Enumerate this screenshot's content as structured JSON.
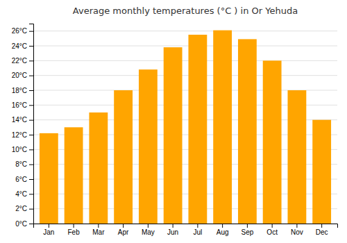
{
  "chart_data": {
    "type": "bar",
    "title": "Average monthly temperatures (°C ) in Or Yehuda",
    "categories": [
      "Jan",
      "Feb",
      "Mar",
      "Apr",
      "May",
      "Jun",
      "Jul",
      "Aug",
      "Sep",
      "Oct",
      "Nov",
      "Dec"
    ],
    "values": [
      12.2,
      13.0,
      15.0,
      18.0,
      20.8,
      23.8,
      25.5,
      26.1,
      24.9,
      22.0,
      18.0,
      14.0
    ],
    "color": "#FFA500",
    "ylim": [
      0,
      27
    ],
    "yticks": [
      {
        "value": 0,
        "label": "0°C"
      },
      {
        "value": 2,
        "label": "2°C"
      },
      {
        "value": 4,
        "label": "4°C"
      },
      {
        "value": 6,
        "label": "6°C"
      },
      {
        "value": 8,
        "label": "8°C"
      },
      {
        "value": 10,
        "label": "10°C"
      },
      {
        "value": 12,
        "label": "12°C"
      },
      {
        "value": 14,
        "label": "14°C"
      },
      {
        "value": 16,
        "label": "16°C"
      },
      {
        "value": 18,
        "label": "18°C"
      },
      {
        "value": 20,
        "label": "20°C"
      },
      {
        "value": 22,
        "label": "22°C"
      },
      {
        "value": 24,
        "label": "24°C"
      },
      {
        "value": 26,
        "label": "26°C"
      }
    ],
    "grid": true
  }
}
